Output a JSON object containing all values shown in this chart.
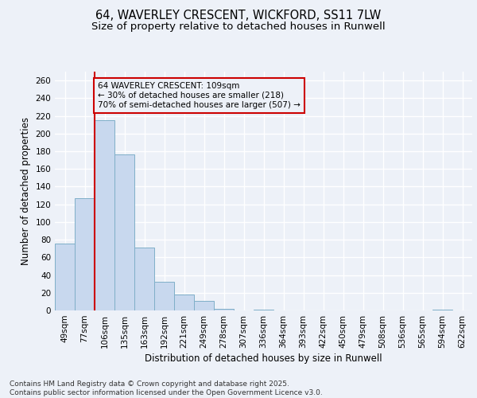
{
  "title_line1": "64, WAVERLEY CRESCENT, WICKFORD, SS11 7LW",
  "title_line2": "Size of property relative to detached houses in Runwell",
  "xlabel": "Distribution of detached houses by size in Runwell",
  "ylabel": "Number of detached properties",
  "categories": [
    "49sqm",
    "77sqm",
    "106sqm",
    "135sqm",
    "163sqm",
    "192sqm",
    "221sqm",
    "249sqm",
    "278sqm",
    "307sqm",
    "336sqm",
    "364sqm",
    "393sqm",
    "422sqm",
    "450sqm",
    "479sqm",
    "508sqm",
    "536sqm",
    "565sqm",
    "594sqm",
    "622sqm"
  ],
  "values": [
    76,
    127,
    215,
    176,
    71,
    32,
    18,
    11,
    2,
    0,
    1,
    0,
    0,
    0,
    0,
    0,
    0,
    0,
    0,
    1,
    0
  ],
  "bar_color": "#c8d8ee",
  "bar_edge_color": "#7fafc8",
  "vline_color": "#cc0000",
  "annotation_text_line1": "64 WAVERLEY CRESCENT: 109sqm",
  "annotation_text_line2": "← 30% of detached houses are smaller (218)",
  "annotation_text_line3": "70% of semi-detached houses are larger (507) →",
  "annotation_box_edgecolor": "#cc0000",
  "ylim": [
    0,
    270
  ],
  "yticks": [
    0,
    20,
    40,
    60,
    80,
    100,
    120,
    140,
    160,
    180,
    200,
    220,
    240,
    260
  ],
  "background_color": "#edf1f8",
  "grid_color": "#ffffff",
  "footer_line1": "Contains HM Land Registry data © Crown copyright and database right 2025.",
  "footer_line2": "Contains public sector information licensed under the Open Government Licence v3.0.",
  "title_fontsize": 10.5,
  "subtitle_fontsize": 9.5,
  "axis_label_fontsize": 8.5,
  "tick_fontsize": 7.5,
  "annotation_fontsize": 7.5,
  "footer_fontsize": 6.5
}
